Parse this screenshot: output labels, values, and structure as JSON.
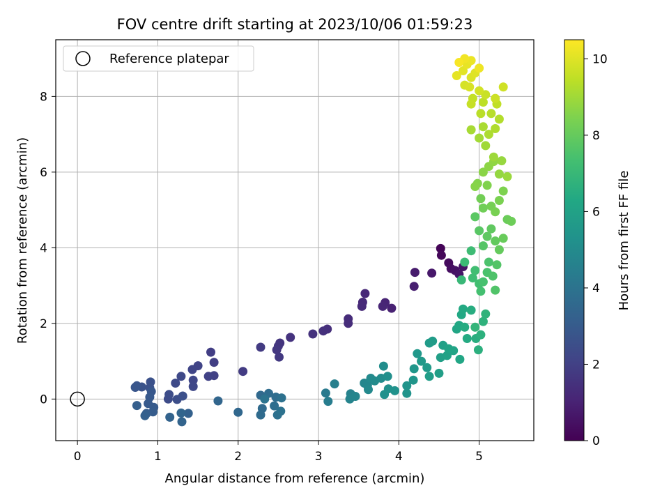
{
  "chart_data": {
    "type": "scatter",
    "title": "FOV centre drift starting at 2023/10/06 01:59:23",
    "xlabel": "Angular distance from reference (arcmin)",
    "ylabel": "Rotation from reference (arcmin)",
    "xlim": [
      -0.27,
      5.68
    ],
    "ylim": [
      -1.1,
      9.5
    ],
    "xticks": [
      0,
      1,
      2,
      3,
      4,
      5
    ],
    "yticks": [
      0,
      2,
      4,
      6,
      8
    ],
    "grid": true,
    "legend": {
      "position": "top-left",
      "entries": [
        "Reference platepar"
      ]
    },
    "reference_point": {
      "x": 0,
      "y": 0,
      "marker": "open-circle"
    },
    "colorbar": {
      "label": "Hours from first FF file",
      "range": [
        0,
        10.5
      ],
      "ticks": [
        0,
        2,
        4,
        6,
        8,
        10
      ],
      "colormap": "viridis"
    },
    "points": [
      [
        4.52,
        3.98,
        0.1
      ],
      [
        4.53,
        3.8,
        0.2
      ],
      [
        4.62,
        3.6,
        0.3
      ],
      [
        4.65,
        3.45,
        0.4
      ],
      [
        4.7,
        3.4,
        0.5
      ],
      [
        4.75,
        3.3,
        0.6
      ],
      [
        4.8,
        3.5,
        0.55
      ],
      [
        4.41,
        3.33,
        0.7
      ],
      [
        4.2,
        3.35,
        0.8
      ],
      [
        4.19,
        2.98,
        0.9
      ],
      [
        3.91,
        2.4,
        1.0
      ],
      [
        3.83,
        2.55,
        1.05
      ],
      [
        3.8,
        2.45,
        1.1
      ],
      [
        3.58,
        2.79,
        1.15
      ],
      [
        3.55,
        2.56,
        1.2
      ],
      [
        3.54,
        2.45,
        1.25
      ],
      [
        3.37,
        2.12,
        1.3
      ],
      [
        3.37,
        2.0,
        1.35
      ],
      [
        3.11,
        1.85,
        1.4
      ],
      [
        3.06,
        1.8,
        1.45
      ],
      [
        2.93,
        1.72,
        1.5
      ],
      [
        2.65,
        1.63,
        1.55
      ],
      [
        2.52,
        1.48,
        1.6
      ],
      [
        2.5,
        1.4,
        1.65
      ],
      [
        2.48,
        1.3,
        1.7
      ],
      [
        2.51,
        1.11,
        1.75
      ],
      [
        2.28,
        1.37,
        1.8
      ],
      [
        2.06,
        0.73,
        1.85
      ],
      [
        1.66,
        1.24,
        1.9
      ],
      [
        1.7,
        0.97,
        1.95
      ],
      [
        1.7,
        0.62,
        2.0
      ],
      [
        1.63,
        0.6,
        2.05
      ],
      [
        1.5,
        0.88,
        2.1
      ],
      [
        1.43,
        0.78,
        2.15
      ],
      [
        1.44,
        0.5,
        2.2
      ],
      [
        1.44,
        0.33,
        2.25
      ],
      [
        1.29,
        0.6,
        2.3
      ],
      [
        1.22,
        0.42,
        2.35
      ],
      [
        1.13,
        0.0,
        2.4
      ],
      [
        1.14,
        0.12,
        2.45
      ],
      [
        1.24,
        -0.01,
        2.5
      ],
      [
        1.31,
        0.08,
        2.55
      ],
      [
        0.91,
        0.45,
        2.6
      ],
      [
        0.9,
        0.3,
        2.65
      ],
      [
        0.8,
        0.32,
        2.7
      ],
      [
        0.74,
        0.35,
        2.75
      ],
      [
        0.72,
        0.31,
        2.8
      ],
      [
        0.92,
        0.2,
        2.85
      ],
      [
        0.9,
        0.05,
        2.9
      ],
      [
        0.88,
        -0.12,
        2.95
      ],
      [
        0.95,
        -0.22,
        3.0
      ],
      [
        0.94,
        -0.34,
        3.05
      ],
      [
        0.86,
        -0.38,
        3.1
      ],
      [
        0.74,
        -0.17,
        3.15
      ],
      [
        0.84,
        -0.44,
        3.2
      ],
      [
        1.38,
        -0.38,
        3.25
      ],
      [
        1.15,
        -0.48,
        3.3
      ],
      [
        1.3,
        -0.6,
        3.35
      ],
      [
        1.29,
        -0.37,
        3.4
      ],
      [
        1.75,
        -0.05,
        3.45
      ],
      [
        2.0,
        -0.35,
        3.5
      ],
      [
        2.28,
        0.1,
        3.55
      ],
      [
        2.3,
        -0.25,
        3.6
      ],
      [
        2.28,
        -0.42,
        3.65
      ],
      [
        2.38,
        0.15,
        3.7
      ],
      [
        2.47,
        0.05,
        3.75
      ],
      [
        2.45,
        -0.18,
        3.8
      ],
      [
        2.49,
        -0.42,
        3.85
      ],
      [
        2.54,
        0.03,
        3.9
      ],
      [
        2.53,
        -0.32,
        3.95
      ],
      [
        2.33,
        0.0,
        4.0
      ],
      [
        3.09,
        0.16,
        4.3
      ],
      [
        3.12,
        -0.06,
        4.4
      ],
      [
        3.2,
        0.4,
        4.5
      ],
      [
        3.4,
        0.14,
        4.6
      ],
      [
        3.39,
        0.0,
        4.7
      ],
      [
        3.46,
        0.07,
        4.75
      ],
      [
        3.57,
        0.42,
        4.8
      ],
      [
        3.61,
        0.36,
        4.85
      ],
      [
        3.62,
        0.25,
        4.9
      ],
      [
        3.65,
        0.55,
        4.95
      ],
      [
        3.7,
        0.48,
        5.0
      ],
      [
        3.78,
        0.55,
        5.05
      ],
      [
        3.81,
        0.87,
        5.1
      ],
      [
        3.86,
        0.6,
        5.15
      ],
      [
        3.82,
        0.12,
        5.2
      ],
      [
        3.87,
        0.27,
        5.25
      ],
      [
        3.95,
        0.22,
        5.3
      ],
      [
        4.1,
        0.15,
        5.35
      ],
      [
        4.1,
        0.35,
        5.4
      ],
      [
        4.18,
        0.5,
        5.45
      ],
      [
        4.19,
        0.8,
        5.5
      ],
      [
        4.23,
        1.2,
        5.55
      ],
      [
        4.28,
        1.0,
        5.6
      ],
      [
        4.35,
        0.83,
        5.65
      ],
      [
        4.38,
        1.48,
        5.7
      ],
      [
        4.42,
        1.53,
        5.75
      ],
      [
        4.38,
        0.6,
        5.8
      ],
      [
        4.5,
        0.68,
        5.85
      ],
      [
        4.52,
        1.1,
        5.9
      ],
      [
        4.55,
        1.42,
        5.95
      ],
      [
        4.6,
        1.15,
        6.0
      ],
      [
        4.62,
        1.33,
        6.05
      ],
      [
        4.68,
        1.28,
        6.1
      ],
      [
        4.72,
        1.85,
        6.15
      ],
      [
        4.76,
        1.05,
        6.2
      ],
      [
        4.75,
        1.95,
        6.25
      ],
      [
        4.78,
        2.23,
        6.3
      ],
      [
        4.8,
        2.38,
        6.35
      ],
      [
        4.85,
        1.6,
        6.4
      ],
      [
        4.82,
        1.9,
        6.45
      ],
      [
        4.9,
        2.35,
        6.5
      ],
      [
        4.96,
        1.6,
        6.55
      ],
      [
        4.99,
        1.3,
        6.6
      ],
      [
        5.02,
        1.7,
        6.65
      ],
      [
        5.05,
        2.05,
        6.7
      ],
      [
        5.08,
        2.25,
        6.75
      ],
      [
        4.95,
        1.9,
        6.85
      ],
      [
        4.78,
        3.15,
        7.0
      ],
      [
        4.82,
        3.62,
        7.1
      ],
      [
        4.9,
        3.92,
        7.15
      ],
      [
        4.92,
        3.2,
        7.2
      ],
      [
        4.95,
        3.4,
        7.25
      ],
      [
        5.0,
        3.05,
        7.3
      ],
      [
        5.02,
        2.85,
        7.35
      ],
      [
        5.05,
        3.1,
        7.4
      ],
      [
        5.1,
        3.35,
        7.45
      ],
      [
        5.12,
        3.62,
        7.5
      ],
      [
        5.17,
        3.25,
        7.55
      ],
      [
        5.2,
        2.88,
        7.6
      ],
      [
        5.22,
        3.55,
        7.65
      ],
      [
        5.05,
        4.05,
        7.7
      ],
      [
        5.0,
        4.45,
        7.75
      ],
      [
        4.95,
        4.82,
        7.8
      ],
      [
        5.1,
        4.3,
        7.85
      ],
      [
        5.15,
        4.5,
        7.9
      ],
      [
        5.2,
        4.18,
        7.95
      ],
      [
        5.25,
        3.95,
        8.0
      ],
      [
        5.3,
        4.25,
        8.05
      ],
      [
        5.35,
        4.75,
        8.1
      ],
      [
        5.4,
        4.7,
        8.15
      ],
      [
        5.05,
        5.05,
        8.2
      ],
      [
        5.02,
        5.3,
        8.25
      ],
      [
        5.15,
        5.1,
        8.3
      ],
      [
        5.2,
        4.95,
        8.35
      ],
      [
        5.25,
        5.25,
        8.4
      ],
      [
        5.3,
        5.5,
        8.45
      ],
      [
        5.1,
        5.65,
        8.5
      ],
      [
        4.98,
        5.7,
        8.55
      ],
      [
        4.95,
        5.62,
        8.6
      ],
      [
        5.05,
        6.0,
        8.65
      ],
      [
        5.12,
        6.15,
        8.7
      ],
      [
        5.18,
        6.28,
        8.75
      ],
      [
        5.25,
        5.95,
        8.8
      ],
      [
        5.28,
        6.3,
        8.85
      ],
      [
        5.35,
        5.88,
        8.9
      ],
      [
        5.18,
        6.4,
        8.95
      ],
      [
        5.08,
        6.7,
        9.0
      ],
      [
        5.0,
        6.9,
        9.05
      ],
      [
        4.9,
        7.12,
        9.1
      ],
      [
        5.05,
        7.2,
        9.15
      ],
      [
        5.12,
        7.0,
        9.2
      ],
      [
        5.2,
        7.15,
        9.25
      ],
      [
        5.25,
        7.4,
        9.3
      ],
      [
        5.15,
        7.55,
        9.35
      ],
      [
        5.02,
        7.55,
        9.4
      ],
      [
        5.05,
        7.85,
        9.45
      ],
      [
        5.22,
        7.8,
        9.5
      ],
      [
        4.92,
        7.95,
        9.55
      ],
      [
        4.9,
        7.8,
        9.6
      ],
      [
        5.08,
        8.05,
        9.65
      ],
      [
        5.2,
        7.95,
        9.7
      ],
      [
        5.3,
        8.25,
        9.75
      ],
      [
        5.0,
        8.15,
        9.8
      ],
      [
        4.82,
        8.3,
        9.85
      ],
      [
        4.88,
        8.25,
        9.9
      ],
      [
        4.9,
        8.5,
        9.95
      ],
      [
        4.95,
        8.62,
        10.0
      ],
      [
        4.8,
        8.68,
        10.05
      ],
      [
        4.72,
        8.55,
        10.1
      ],
      [
        4.85,
        8.85,
        10.15
      ],
      [
        4.9,
        8.95,
        10.2
      ],
      [
        5.0,
        8.75,
        10.25
      ],
      [
        4.82,
        9.0,
        10.3
      ],
      [
        4.75,
        8.9,
        10.4
      ]
    ]
  }
}
